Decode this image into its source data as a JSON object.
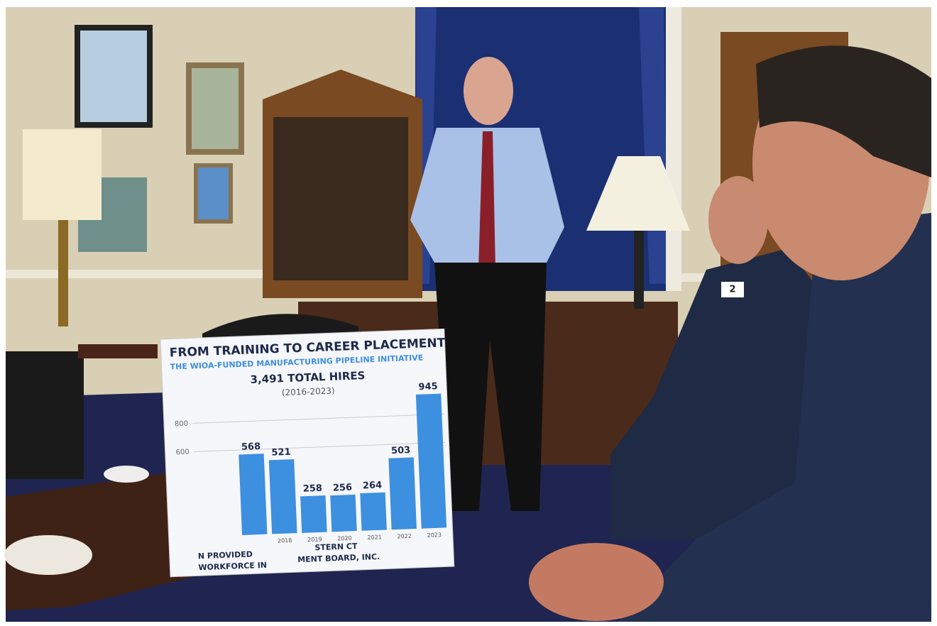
{
  "chart_data": {
    "type": "bar",
    "title": "FROM TRAINING TO CAREER PLACEMENT",
    "subtitle": "THE WIOA-FUNDED MANUFACTURING PIPELINE INITIATIVE",
    "total": "3,491 TOTAL HIRES",
    "period": "(2016-2023)",
    "categories": [
      null,
      "2018",
      "2019",
      "2020",
      "2021",
      "2022",
      "2023"
    ],
    "values": [
      568,
      521,
      258,
      256,
      264,
      503,
      945
    ],
    "color": "#3d8fe0",
    "ylim": [
      0,
      1000
    ],
    "yticks": [
      600,
      800
    ],
    "grid": true,
    "footer": [
      "N PROVIDED",
      "STERN CT",
      "WORKFORCE IN",
      "MENT BOARD, INC."
    ]
  },
  "placard": "2"
}
